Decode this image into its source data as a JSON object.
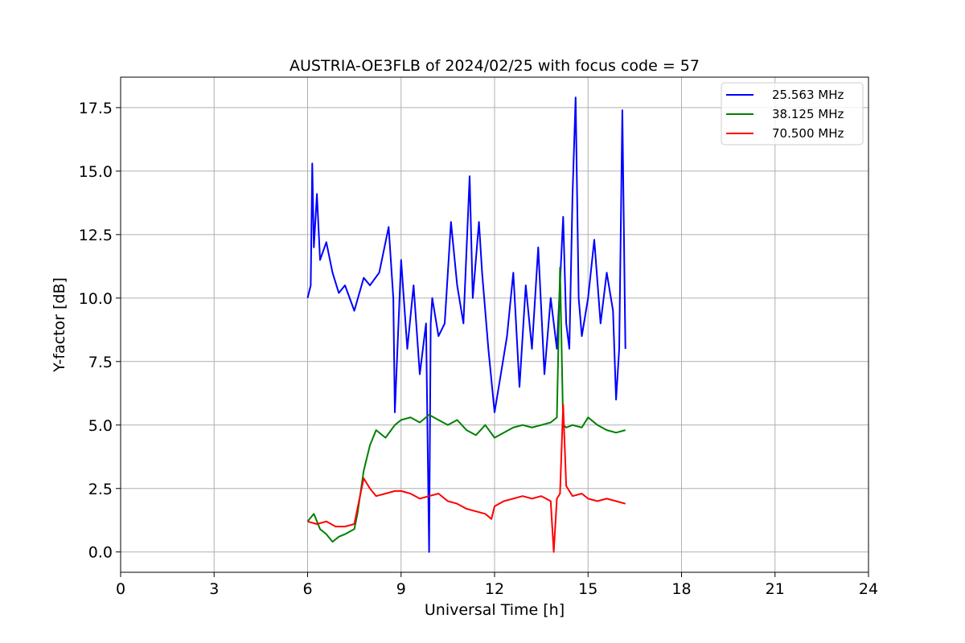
{
  "chart_data": {
    "type": "line",
    "title": "AUSTRIA-OE3FLB of 2024/02/25 with focus code = 57",
    "xlabel": "Universal Time [h]",
    "ylabel": "Y-factor [dB]",
    "xlim": [
      0,
      24
    ],
    "ylim": [
      -0.8,
      18.7
    ],
    "x_ticks": [
      0,
      3,
      6,
      9,
      12,
      15,
      18,
      21,
      24
    ],
    "x_tick_labels": [
      "0",
      "3",
      "6",
      "9",
      "12",
      "15",
      "18",
      "21",
      "24"
    ],
    "y_ticks": [
      0,
      2.5,
      5,
      7.5,
      10,
      12.5,
      15,
      17.5
    ],
    "y_tick_labels": [
      "0.0",
      "2.5",
      "5.0",
      "7.5",
      "10.0",
      "12.5",
      "15.0",
      "17.5"
    ],
    "grid": true,
    "legend_position": "top-right",
    "series": [
      {
        "name": "25.563 MHz",
        "color": "#0000ff",
        "x": [
          6.0,
          6.1,
          6.15,
          6.2,
          6.3,
          6.4,
          6.6,
          6.8,
          7.0,
          7.2,
          7.5,
          7.8,
          8.0,
          8.3,
          8.6,
          8.75,
          8.8,
          9.0,
          9.2,
          9.4,
          9.6,
          9.8,
          9.9,
          9.95,
          10.0,
          10.2,
          10.4,
          10.6,
          10.8,
          11.0,
          11.2,
          11.3,
          11.5,
          11.6,
          11.8,
          12.0,
          12.2,
          12.4,
          12.6,
          12.8,
          13.0,
          13.2,
          13.4,
          13.6,
          13.8,
          14.0,
          14.2,
          14.3,
          14.4,
          14.5,
          14.6,
          14.7,
          14.8,
          15.0,
          15.2,
          15.4,
          15.6,
          15.8,
          15.9,
          16.0,
          16.1,
          16.2
        ],
        "y": [
          10.0,
          10.5,
          15.3,
          12.0,
          14.1,
          11.5,
          12.2,
          11.0,
          10.2,
          10.5,
          9.5,
          10.8,
          10.5,
          11.0,
          12.8,
          10.0,
          5.5,
          11.5,
          8.0,
          10.5,
          7.0,
          9.0,
          0.0,
          9.0,
          10.0,
          8.5,
          9.0,
          13.0,
          10.5,
          9.0,
          14.8,
          10.0,
          13.0,
          11.0,
          8.0,
          5.5,
          7.0,
          8.5,
          11.0,
          6.5,
          10.5,
          8.0,
          12.0,
          7.0,
          10.0,
          8.0,
          13.2,
          9.0,
          8.0,
          14.0,
          17.9,
          10.0,
          8.5,
          10.0,
          12.3,
          9.0,
          11.0,
          9.5,
          6.0,
          8.0,
          17.4,
          8.0
        ]
      },
      {
        "name": "38.125 MHz",
        "color": "#008000",
        "x": [
          6.0,
          6.2,
          6.4,
          6.6,
          6.8,
          7.0,
          7.2,
          7.5,
          7.6,
          7.8,
          8.0,
          8.2,
          8.5,
          8.8,
          9.0,
          9.3,
          9.6,
          9.9,
          10.2,
          10.5,
          10.8,
          11.1,
          11.4,
          11.7,
          12.0,
          12.3,
          12.6,
          12.9,
          13.2,
          13.5,
          13.8,
          14.0,
          14.1,
          14.2,
          14.3,
          14.5,
          14.8,
          15.0,
          15.3,
          15.6,
          15.9,
          16.2
        ],
        "y": [
          1.2,
          1.5,
          0.9,
          0.7,
          0.4,
          0.6,
          0.7,
          0.9,
          1.5,
          3.2,
          4.2,
          4.8,
          4.5,
          5.0,
          5.2,
          5.3,
          5.1,
          5.4,
          5.2,
          5.0,
          5.2,
          4.8,
          4.6,
          5.0,
          4.5,
          4.7,
          4.9,
          5.0,
          4.9,
          5.0,
          5.1,
          5.3,
          11.2,
          5.0,
          4.9,
          5.0,
          4.9,
          5.3,
          5.0,
          4.8,
          4.7,
          4.8
        ]
      },
      {
        "name": "70.500 MHz",
        "color": "#ff0000",
        "x": [
          6.0,
          6.3,
          6.6,
          6.9,
          7.2,
          7.5,
          7.65,
          7.8,
          7.9,
          8.0,
          8.2,
          8.5,
          8.8,
          9.0,
          9.3,
          9.6,
          9.9,
          10.2,
          10.5,
          10.8,
          11.1,
          11.4,
          11.7,
          11.9,
          12.0,
          12.3,
          12.6,
          12.9,
          13.2,
          13.5,
          13.8,
          13.9,
          14.0,
          14.1,
          14.2,
          14.3,
          14.5,
          14.8,
          15.0,
          15.3,
          15.6,
          15.9,
          16.2
        ],
        "y": [
          1.2,
          1.1,
          1.2,
          1.0,
          1.0,
          1.1,
          2.0,
          2.9,
          2.7,
          2.5,
          2.2,
          2.3,
          2.4,
          2.4,
          2.3,
          2.1,
          2.2,
          2.3,
          2.0,
          1.9,
          1.7,
          1.6,
          1.5,
          1.3,
          1.8,
          2.0,
          2.1,
          2.2,
          2.1,
          2.2,
          2.0,
          0.0,
          2.1,
          2.3,
          5.8,
          2.6,
          2.2,
          2.3,
          2.1,
          2.0,
          2.1,
          2.0,
          1.9
        ]
      }
    ]
  }
}
